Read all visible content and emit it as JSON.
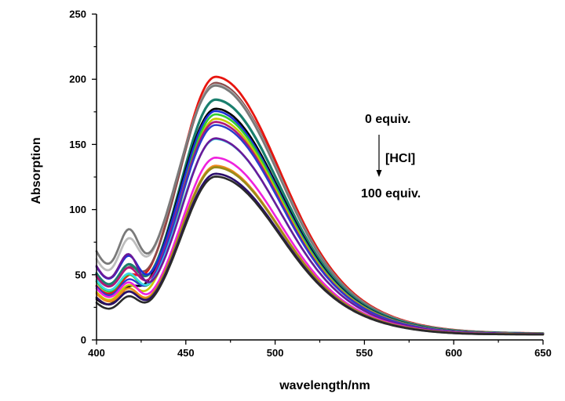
{
  "chart_data": {
    "type": "line",
    "title": "",
    "xlabel": "wavelength/nm",
    "ylabel": "Absorption",
    "xlim": [
      400,
      650
    ],
    "ylim": [
      0,
      250
    ],
    "xticks": [
      400,
      450,
      500,
      550,
      600,
      650
    ],
    "yticks": [
      0,
      50,
      100,
      150,
      200,
      250
    ],
    "grid": false,
    "annotations": {
      "start_label": "0 equiv.",
      "reagent_label": "[HCl]",
      "end_label": "100 equiv."
    },
    "series": [
      {
        "name": "0 equiv.",
        "color": "#e8150f",
        "width": 2.8,
        "peak": 200,
        "y400": 40,
        "shoulder": 0.28,
        "sigma": 30
      },
      {
        "name": "s2",
        "color": "#8a4a4a",
        "width": 2.6,
        "peak": 195,
        "y400": 47,
        "shoulder": 0.3,
        "sigma": 30
      },
      {
        "name": "s3",
        "color": "#bdbdbd",
        "width": 2.8,
        "peak": 193,
        "y400": 60,
        "shoulder": 0.42,
        "sigma": 31
      },
      {
        "name": "s4",
        "color": "#7a7a7a",
        "width": 2.8,
        "peak": 192,
        "y400": 66,
        "shoulder": 0.44,
        "sigma": 31
      },
      {
        "name": "s5",
        "color": "#1a7f6e",
        "width": 3.2,
        "peak": 182,
        "y400": 50,
        "shoulder": 0.34,
        "sigma": 29
      },
      {
        "name": "s6",
        "color": "#000000",
        "width": 2.6,
        "peak": 176,
        "y400": 30,
        "shoulder": 0.28,
        "sigma": 30
      },
      {
        "name": "s7",
        "color": "#1b2fd6",
        "width": 2.6,
        "peak": 173,
        "y400": 55,
        "shoulder": 0.38,
        "sigma": 29
      },
      {
        "name": "s8",
        "color": "#33cc33",
        "width": 2.6,
        "peak": 171,
        "y400": 44,
        "shoulder": 0.33,
        "sigma": 28
      },
      {
        "name": "s9",
        "color": "#c8c800",
        "width": 2.6,
        "peak": 168,
        "y400": 36,
        "shoulder": 0.3,
        "sigma": 28
      },
      {
        "name": "s10",
        "color": "#b0167a",
        "width": 2.6,
        "peak": 165,
        "y400": 48,
        "shoulder": 0.34,
        "sigma": 29
      },
      {
        "name": "s11",
        "color": "#2a3dcc",
        "width": 2.4,
        "peak": 163,
        "y400": 40,
        "shoulder": 0.3,
        "sigma": 29
      },
      {
        "name": "s12",
        "color": "#3ed7e8",
        "width": 2.6,
        "peak": 152,
        "y400": 45,
        "shoulder": 0.32,
        "sigma": 29
      },
      {
        "name": "s13",
        "color": "#6a1a9a",
        "width": 2.6,
        "peak": 152,
        "y400": 56,
        "shoulder": 0.42,
        "sigma": 28
      },
      {
        "name": "s14",
        "color": "#ee22dd",
        "width": 2.6,
        "peak": 138,
        "y400": 39,
        "shoulder": 0.32,
        "sigma": 28
      },
      {
        "name": "s15",
        "color": "#f08a1c",
        "width": 2.6,
        "peak": 132,
        "y400": 35,
        "shoulder": 0.3,
        "sigma": 28
      },
      {
        "name": "s16",
        "color": "#9a8a18",
        "width": 2.8,
        "peak": 131,
        "y400": 32,
        "shoulder": 0.3,
        "sigma": 28
      },
      {
        "name": "s17",
        "color": "#2a0d6a",
        "width": 2.6,
        "peak": 126,
        "y400": 32,
        "shoulder": 0.3,
        "sigma": 28
      },
      {
        "name": "100 equiv.",
        "color": "#2a2a2a",
        "width": 2.6,
        "peak": 124,
        "y400": 28,
        "shoulder": 0.29,
        "sigma": 28
      }
    ]
  }
}
